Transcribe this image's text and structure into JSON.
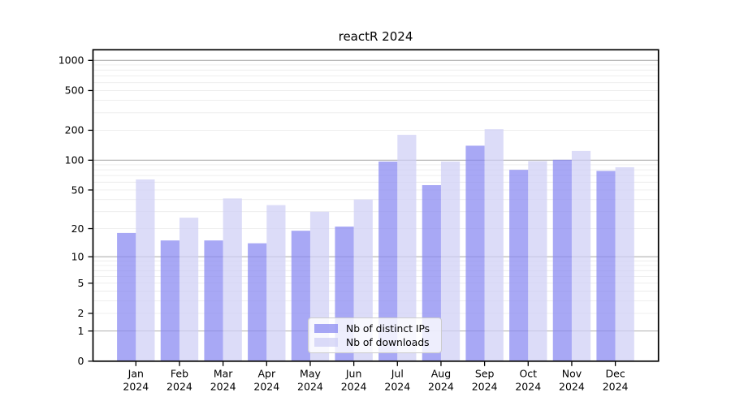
{
  "chart_data": {
    "type": "bar",
    "title": "reactR 2024",
    "xlabel": "",
    "ylabel": "",
    "yscale": "log1p",
    "grid": true,
    "legend_position": "lower center",
    "categories": [
      "Jan",
      "Feb",
      "Mar",
      "Apr",
      "May",
      "Jun",
      "Jul",
      "Aug",
      "Sep",
      "Oct",
      "Nov",
      "Dec"
    ],
    "x_year": "2024",
    "series": [
      {
        "name": "Nb of distinct IPs",
        "color": "rgba(134,134,241,0.72)",
        "values": [
          18,
          15,
          15,
          14,
          19,
          21,
          97,
          56,
          140,
          80,
          101,
          78
        ]
      },
      {
        "name": "Nb of downloads",
        "color": "rgba(206,206,245,0.72)",
        "values": [
          64,
          26,
          41,
          35,
          30,
          40,
          180,
          97,
          205,
          98,
          124,
          85
        ]
      }
    ],
    "y_axis": {
      "ticks": [
        1000,
        500,
        200,
        100,
        50,
        20,
        10,
        5,
        2,
        1,
        0
      ],
      "major_gridlines": [
        1,
        10,
        100,
        1000
      ],
      "minor_gridlines": [
        2,
        3,
        4,
        5,
        6,
        7,
        8,
        9,
        20,
        30,
        40,
        50,
        60,
        70,
        80,
        90,
        200,
        300,
        400,
        500,
        600,
        700,
        800,
        900
      ],
      "range_log10_1p": [
        0,
        3.106
      ]
    },
    "colors": {
      "major_grid": "#b0b0b0",
      "minor_grid": "#ececec",
      "spine": "#000000",
      "text": "#000000",
      "legend_border": "#cccccc",
      "legend_bg": "rgba(255,255,255,0.8)"
    }
  }
}
